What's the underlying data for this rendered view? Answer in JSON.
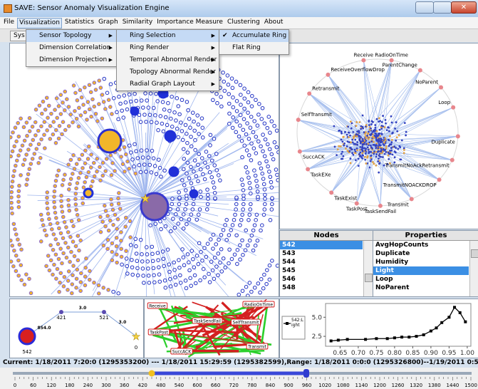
{
  "window": {
    "title": "SAVE: Sensor Anomaly Visualization Engine"
  },
  "menu": [
    "File",
    "Visualization",
    "Statistics",
    "Graph",
    "Similarity",
    "Importance Measure",
    "Clustering",
    "About"
  ],
  "toolbar_button": "Sys",
  "submenu_1": [
    "Sensor Topology",
    "Dimension Correlation",
    "Dimension Projection"
  ],
  "submenu_2": [
    "Ring Selection",
    "Ring Render",
    "Temporal Abnormal Render",
    "Topology Abnormal Render",
    "Radial Graph Layout"
  ],
  "submenu_3": [
    "Accumulate Ring",
    "Flat Ring"
  ],
  "ring_graph": {
    "labels": [
      "Receive",
      "RadioOnTime",
      "ParentChange",
      "NoParent",
      "Loop",
      "Duplicate",
      "TransmitNoAckRetransmit",
      "TransmitNOACKDROP",
      "Transmit",
      "TaskSendFail",
      "TaskPost",
      "TaskExist",
      "TaskEXe",
      "SuccACK",
      "SelfTransmit",
      "Retransmit",
      "ReceiveOverflowDrop"
    ]
  },
  "nodes_table": {
    "header": "Nodes",
    "rows": [
      "542",
      "543",
      "544",
      "545",
      "546",
      "548"
    ],
    "selected": 0
  },
  "properties_table": {
    "header": "Properties",
    "rows": [
      "AvgHopCounts",
      "Duplicate",
      "Humidity",
      "Light",
      "Loop",
      "NoParent"
    ],
    "selected": 3
  },
  "path_graph": {
    "nodes": [
      "421",
      "521",
      "542",
      "0"
    ],
    "edges": [
      "3.0",
      "3.0",
      "854.0"
    ]
  },
  "correlation_graph": {
    "labels": [
      "Receive",
      "RadioOnTime",
      "TaskSendFail",
      "SelfTransmit",
      "TaskPost",
      "Transmit",
      "SuccACK"
    ]
  },
  "line_chart": {
    "type": "line",
    "x": [
      0.625,
      0.645,
      0.67,
      0.72,
      0.75,
      0.78,
      0.8,
      0.82,
      0.84,
      0.86,
      0.88,
      0.9,
      0.915,
      0.93,
      0.95,
      0.965,
      0.98,
      0.995
    ],
    "series": [
      {
        "name": "542:Light",
        "color": "#000000",
        "values": [
          1.9,
          2.0,
          2.1,
          2.1,
          2.2,
          2.2,
          2.3,
          2.4,
          2.4,
          2.5,
          2.7,
          3.2,
          3.6,
          4.3,
          5.0,
          6.3,
          5.6,
          4.4
        ]
      }
    ],
    "xlim": [
      0.61,
      1.01
    ],
    "ylim": [
      1.2,
      6.8
    ],
    "xticks": [
      0.65,
      {
        "value": 0.7,
        "label": "0.70"
      },
      0.75,
      {
        "value": 0.8,
        "label": "0.80"
      },
      0.85,
      {
        "value": 0.9,
        "label": "0.90"
      },
      0.95,
      {
        "value": 1,
        "label": "1.00"
      }
    ],
    "yticks": [
      2.5,
      {
        "value": 5,
        "label": "5.0"
      }
    ]
  },
  "status": "Current: 1/18/2011 7:20:0 (1295353200) --- 1/18/2011 15:29:59 (1295382599),Range: 1/18/2011 0:0:0 (1295326800)--1/19/2011 0:59:59 (1295416799)",
  "timeline": {
    "ticks": [
      0,
      60,
      120,
      180,
      240,
      300,
      360,
      420,
      480,
      540,
      600,
      660,
      720,
      780,
      840,
      900,
      960,
      1020,
      1080,
      1140,
      1200,
      1260,
      1320,
      1380,
      1440,
      1500
    ]
  }
}
